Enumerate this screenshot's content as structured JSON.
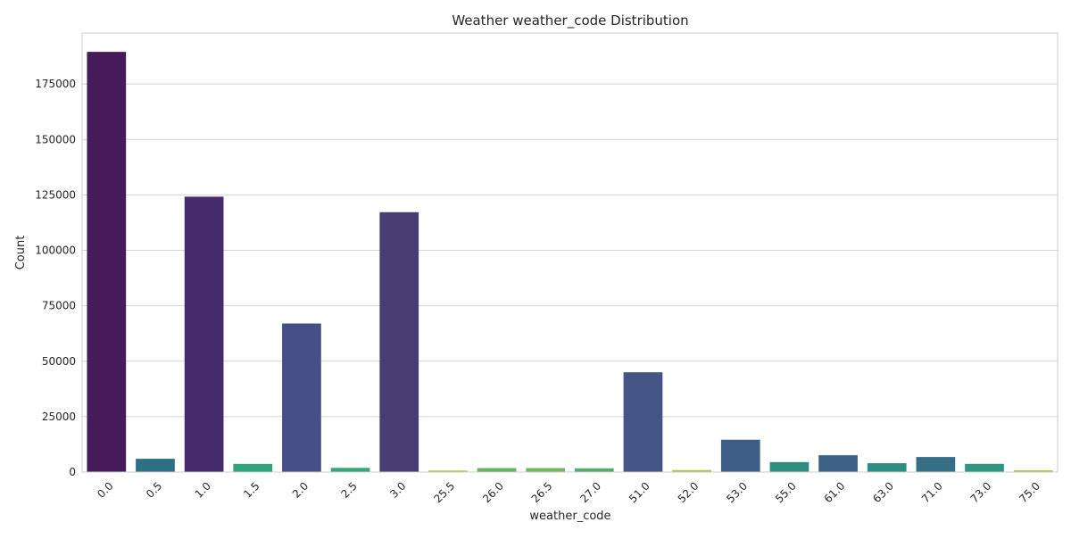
{
  "chart_data": {
    "type": "bar",
    "title": "Weather weather_code Distribution",
    "xlabel": "weather_code",
    "ylabel": "Count",
    "ylim": [
      0,
      198000
    ],
    "yticks": [
      0,
      25000,
      50000,
      75000,
      100000,
      125000,
      150000,
      175000
    ],
    "grid": "horizontal",
    "categories": [
      "0.0",
      "0.5",
      "1.0",
      "1.5",
      "2.0",
      "2.5",
      "3.0",
      "25.5",
      "26.0",
      "26.5",
      "27.0",
      "51.0",
      "52.0",
      "53.0",
      "55.0",
      "61.0",
      "63.0",
      "71.0",
      "73.0",
      "75.0"
    ],
    "values": [
      189500,
      6000,
      124200,
      3700,
      67000,
      1900,
      117200,
      700,
      1800,
      1800,
      1700,
      45000,
      900,
      14600,
      4500,
      7600,
      4000,
      6800,
      3700,
      800
    ],
    "colors": [
      "#471a5a",
      "#2d7083",
      "#462b6a",
      "#31a27d",
      "#454e86",
      "#36a67a",
      "#473d73",
      "#b5c542",
      "#66b462",
      "#72b65d",
      "#52ae6e",
      "#435485",
      "#a8c34a",
      "#3e5e88",
      "#2e8c81",
      "#3e6286",
      "#2d8d80",
      "#356e85",
      "#32967f",
      "#b1c446"
    ]
  }
}
